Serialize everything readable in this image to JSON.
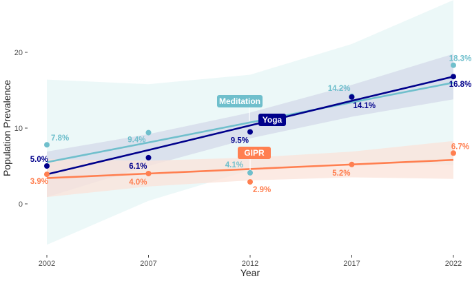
{
  "chart_data": {
    "type": "line",
    "xlabel": "Year",
    "ylabel": "Population Prevalence",
    "x": [
      2002,
      2007,
      2012,
      2017,
      2022
    ],
    "xticks": [
      "2002",
      "2007",
      "2012",
      "2017",
      "2022"
    ],
    "yticks": [
      "0",
      "10",
      "20"
    ],
    "ytick_values": [
      0,
      10,
      20
    ],
    "ylim": [
      -6.5,
      27
    ],
    "grid": false,
    "legend": "inline labels",
    "series": [
      {
        "name": "Meditation",
        "color": "#6fbfcc",
        "ribbon_color": "#e6f6f5",
        "values": [
          7.8,
          9.4,
          4.1,
          14.2,
          18.3
        ],
        "labels": [
          "7.8%",
          "9.4%",
          "4.1%",
          "14.2%",
          "18.3%"
        ],
        "fit": [
          5.5,
          8.1,
          10.75,
          13.4,
          16.0
        ],
        "ci_lower": [
          -5.4,
          0.4,
          4.45,
          5.7,
          5.1
        ],
        "ci_upper": [
          16.4,
          15.8,
          17.05,
          21.1,
          26.9
        ]
      },
      {
        "name": "Yoga",
        "color": "#00008b",
        "ribbon_color": "#d4d9ea",
        "values": [
          5.0,
          6.1,
          9.5,
          14.1,
          16.8
        ],
        "labels": [
          "5.0%",
          "6.1%",
          "9.5%",
          "14.1%",
          "16.8%"
        ],
        "fit": [
          3.9,
          7.1,
          10.35,
          13.6,
          16.8
        ],
        "ci_lower": [
          0.9,
          5.0,
          8.65,
          11.5,
          13.8
        ],
        "ci_upper": [
          6.9,
          9.2,
          12.05,
          15.7,
          19.8
        ]
      },
      {
        "name": "GIPR",
        "color": "#ff7f50",
        "ribbon_color": "#fbe3da",
        "values": [
          3.9,
          4.0,
          2.9,
          5.2,
          6.7
        ],
        "labels": [
          "3.9%",
          "4.0%",
          "2.9%",
          "5.2%",
          "6.7%"
        ],
        "fit": [
          3.4,
          4.0,
          4.6,
          5.2,
          5.8
        ],
        "ci_lower": [
          0.9,
          2.3,
          3.1,
          3.5,
          3.3
        ],
        "ci_upper": [
          5.9,
          5.7,
          6.1,
          6.9,
          8.3
        ]
      }
    ]
  }
}
